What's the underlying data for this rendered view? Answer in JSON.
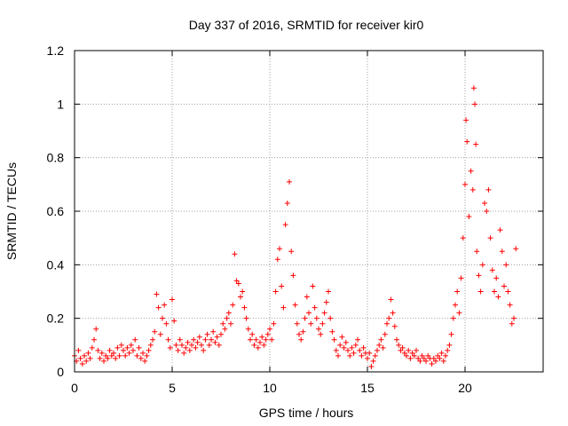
{
  "chart_data": {
    "type": "scatter",
    "title": "Day 337 of 2016, SRMTID for receiver kir0",
    "xlabel": "GPS time / hours",
    "ylabel": "SRMTID / TECUs",
    "xlim": [
      0,
      24
    ],
    "ylim": [
      0,
      1.2
    ],
    "x_ticks": [
      0,
      5,
      10,
      15,
      20
    ],
    "x_tick_labels": [
      "0",
      "5",
      "10",
      "15",
      "20"
    ],
    "y_ticks": [
      0,
      0.2,
      0.4,
      0.6,
      0.8,
      1.0,
      1.2
    ],
    "y_tick_labels": [
      "0",
      "0.2",
      "0.4",
      "0.6",
      "0.8",
      "1",
      "1.2"
    ],
    "grid": true,
    "marker": "+",
    "series": [
      {
        "name": "kir0",
        "color": "#ff0000",
        "points": [
          [
            0.0,
            0.06
          ],
          [
            0.1,
            0.04
          ],
          [
            0.2,
            0.08
          ],
          [
            0.3,
            0.05
          ],
          [
            0.4,
            0.03
          ],
          [
            0.5,
            0.06
          ],
          [
            0.6,
            0.04
          ],
          [
            0.7,
            0.07
          ],
          [
            0.8,
            0.05
          ],
          [
            0.9,
            0.09
          ],
          [
            1.0,
            0.12
          ],
          [
            1.1,
            0.16
          ],
          [
            1.2,
            0.08
          ],
          [
            1.3,
            0.05
          ],
          [
            1.4,
            0.07
          ],
          [
            1.5,
            0.04
          ],
          [
            1.6,
            0.06
          ],
          [
            1.7,
            0.05
          ],
          [
            1.8,
            0.08
          ],
          [
            1.9,
            0.06
          ],
          [
            2.0,
            0.07
          ],
          [
            2.1,
            0.05
          ],
          [
            2.2,
            0.09
          ],
          [
            2.3,
            0.06
          ],
          [
            2.4,
            0.1
          ],
          [
            2.5,
            0.08
          ],
          [
            2.6,
            0.06
          ],
          [
            2.7,
            0.09
          ],
          [
            2.8,
            0.07
          ],
          [
            2.9,
            0.1
          ],
          [
            3.0,
            0.08
          ],
          [
            3.1,
            0.12
          ],
          [
            3.2,
            0.06
          ],
          [
            3.3,
            0.09
          ],
          [
            3.4,
            0.05
          ],
          [
            3.5,
            0.07
          ],
          [
            3.6,
            0.04
          ],
          [
            3.7,
            0.06
          ],
          [
            3.8,
            0.08
          ],
          [
            3.9,
            0.1
          ],
          [
            4.0,
            0.12
          ],
          [
            4.1,
            0.15
          ],
          [
            4.2,
            0.29
          ],
          [
            4.3,
            0.24
          ],
          [
            4.4,
            0.14
          ],
          [
            4.5,
            0.2
          ],
          [
            4.6,
            0.25
          ],
          [
            4.7,
            0.18
          ],
          [
            4.8,
            0.12
          ],
          [
            4.9,
            0.09
          ],
          [
            5.0,
            0.27
          ],
          [
            5.1,
            0.19
          ],
          [
            5.2,
            0.1
          ],
          [
            5.3,
            0.08
          ],
          [
            5.4,
            0.12
          ],
          [
            5.5,
            0.1
          ],
          [
            5.6,
            0.07
          ],
          [
            5.7,
            0.09
          ],
          [
            5.8,
            0.11
          ],
          [
            5.9,
            0.08
          ],
          [
            6.0,
            0.1
          ],
          [
            6.1,
            0.12
          ],
          [
            6.2,
            0.09
          ],
          [
            6.3,
            0.11
          ],
          [
            6.4,
            0.13
          ],
          [
            6.5,
            0.1
          ],
          [
            6.6,
            0.08
          ],
          [
            6.7,
            0.12
          ],
          [
            6.8,
            0.14
          ],
          [
            6.9,
            0.1
          ],
          [
            7.0,
            0.12
          ],
          [
            7.1,
            0.15
          ],
          [
            7.2,
            0.11
          ],
          [
            7.3,
            0.13
          ],
          [
            7.4,
            0.1
          ],
          [
            7.5,
            0.14
          ],
          [
            7.6,
            0.18
          ],
          [
            7.7,
            0.16
          ],
          [
            7.8,
            0.2
          ],
          [
            7.9,
            0.22
          ],
          [
            8.0,
            0.18
          ],
          [
            8.1,
            0.25
          ],
          [
            8.2,
            0.44
          ],
          [
            8.3,
            0.34
          ],
          [
            8.4,
            0.33
          ],
          [
            8.5,
            0.28
          ],
          [
            8.6,
            0.3
          ],
          [
            8.7,
            0.24
          ],
          [
            8.8,
            0.2
          ],
          [
            8.9,
            0.16
          ],
          [
            9.0,
            0.12
          ],
          [
            9.1,
            0.14
          ],
          [
            9.2,
            0.1
          ],
          [
            9.3,
            0.12
          ],
          [
            9.4,
            0.09
          ],
          [
            9.5,
            0.11
          ],
          [
            9.6,
            0.13
          ],
          [
            9.7,
            0.1
          ],
          [
            9.8,
            0.12
          ],
          [
            9.9,
            0.14
          ],
          [
            10.0,
            0.16
          ],
          [
            10.1,
            0.12
          ],
          [
            10.2,
            0.18
          ],
          [
            10.3,
            0.3
          ],
          [
            10.4,
            0.42
          ],
          [
            10.5,
            0.46
          ],
          [
            10.6,
            0.32
          ],
          [
            10.7,
            0.24
          ],
          [
            10.8,
            0.55
          ],
          [
            10.9,
            0.63
          ],
          [
            11.0,
            0.71
          ],
          [
            11.1,
            0.45
          ],
          [
            11.2,
            0.36
          ],
          [
            11.3,
            0.25
          ],
          [
            11.4,
            0.18
          ],
          [
            11.5,
            0.14
          ],
          [
            11.6,
            0.12
          ],
          [
            11.7,
            0.15
          ],
          [
            11.8,
            0.2
          ],
          [
            11.9,
            0.28
          ],
          [
            12.0,
            0.22
          ],
          [
            12.1,
            0.18
          ],
          [
            12.2,
            0.32
          ],
          [
            12.3,
            0.24
          ],
          [
            12.4,
            0.2
          ],
          [
            12.5,
            0.16
          ],
          [
            12.6,
            0.14
          ],
          [
            12.7,
            0.18
          ],
          [
            12.8,
            0.22
          ],
          [
            12.9,
            0.26
          ],
          [
            13.0,
            0.3
          ],
          [
            13.1,
            0.2
          ],
          [
            13.2,
            0.15
          ],
          [
            13.3,
            0.12
          ],
          [
            13.4,
            0.08
          ],
          [
            13.5,
            0.06
          ],
          [
            13.6,
            0.1
          ],
          [
            13.7,
            0.13
          ],
          [
            13.8,
            0.09
          ],
          [
            13.9,
            0.11
          ],
          [
            14.0,
            0.08
          ],
          [
            14.1,
            0.06
          ],
          [
            14.2,
            0.09
          ],
          [
            14.3,
            0.07
          ],
          [
            14.4,
            0.1
          ],
          [
            14.5,
            0.12
          ],
          [
            14.6,
            0.08
          ],
          [
            14.7,
            0.06
          ],
          [
            14.8,
            0.09
          ],
          [
            14.9,
            0.07
          ],
          [
            15.0,
            0.05
          ],
          [
            15.1,
            0.07
          ],
          [
            15.2,
            0.02
          ],
          [
            15.3,
            0.04
          ],
          [
            15.4,
            0.06
          ],
          [
            15.5,
            0.08
          ],
          [
            15.6,
            0.1
          ],
          [
            15.7,
            0.12
          ],
          [
            15.8,
            0.09
          ],
          [
            15.9,
            0.14
          ],
          [
            16.0,
            0.18
          ],
          [
            16.1,
            0.2
          ],
          [
            16.2,
            0.27
          ],
          [
            16.3,
            0.22
          ],
          [
            16.4,
            0.17
          ],
          [
            16.5,
            0.12
          ],
          [
            16.6,
            0.1
          ],
          [
            16.7,
            0.08
          ],
          [
            16.8,
            0.09
          ],
          [
            16.9,
            0.07
          ],
          [
            17.0,
            0.06
          ],
          [
            17.1,
            0.08
          ],
          [
            17.2,
            0.05
          ],
          [
            17.3,
            0.07
          ],
          [
            17.4,
            0.06
          ],
          [
            17.5,
            0.08
          ],
          [
            17.6,
            0.05
          ],
          [
            17.7,
            0.04
          ],
          [
            17.8,
            0.06
          ],
          [
            17.9,
            0.05
          ],
          [
            18.0,
            0.04
          ],
          [
            18.1,
            0.06
          ],
          [
            18.2,
            0.05
          ],
          [
            18.3,
            0.03
          ],
          [
            18.4,
            0.05
          ],
          [
            18.5,
            0.04
          ],
          [
            18.6,
            0.06
          ],
          [
            18.7,
            0.05
          ],
          [
            18.8,
            0.07
          ],
          [
            18.9,
            0.04
          ],
          [
            19.0,
            0.06
          ],
          [
            19.1,
            0.08
          ],
          [
            19.2,
            0.1
          ],
          [
            19.3,
            0.14
          ],
          [
            19.4,
            0.2
          ],
          [
            19.5,
            0.25
          ],
          [
            19.6,
            0.3
          ],
          [
            19.7,
            0.22
          ],
          [
            19.8,
            0.35
          ],
          [
            19.9,
            0.5
          ],
          [
            20.0,
            0.7
          ],
          [
            20.05,
            0.94
          ],
          [
            20.1,
            0.86
          ],
          [
            20.2,
            0.58
          ],
          [
            20.3,
            0.75
          ],
          [
            20.4,
            0.68
          ],
          [
            20.45,
            1.06
          ],
          [
            20.5,
            1.0
          ],
          [
            20.55,
            0.85
          ],
          [
            20.6,
            0.45
          ],
          [
            20.7,
            0.36
          ],
          [
            20.8,
            0.3
          ],
          [
            20.9,
            0.4
          ],
          [
            21.0,
            0.63
          ],
          [
            21.1,
            0.6
          ],
          [
            21.2,
            0.68
          ],
          [
            21.3,
            0.5
          ],
          [
            21.4,
            0.38
          ],
          [
            21.5,
            0.3
          ],
          [
            21.6,
            0.35
          ],
          [
            21.7,
            0.28
          ],
          [
            21.8,
            0.53
          ],
          [
            21.9,
            0.45
          ],
          [
            22.0,
            0.32
          ],
          [
            22.1,
            0.4
          ],
          [
            22.2,
            0.3
          ],
          [
            22.3,
            0.25
          ],
          [
            22.4,
            0.18
          ],
          [
            22.5,
            0.2
          ],
          [
            22.6,
            0.46
          ]
        ]
      }
    ]
  }
}
